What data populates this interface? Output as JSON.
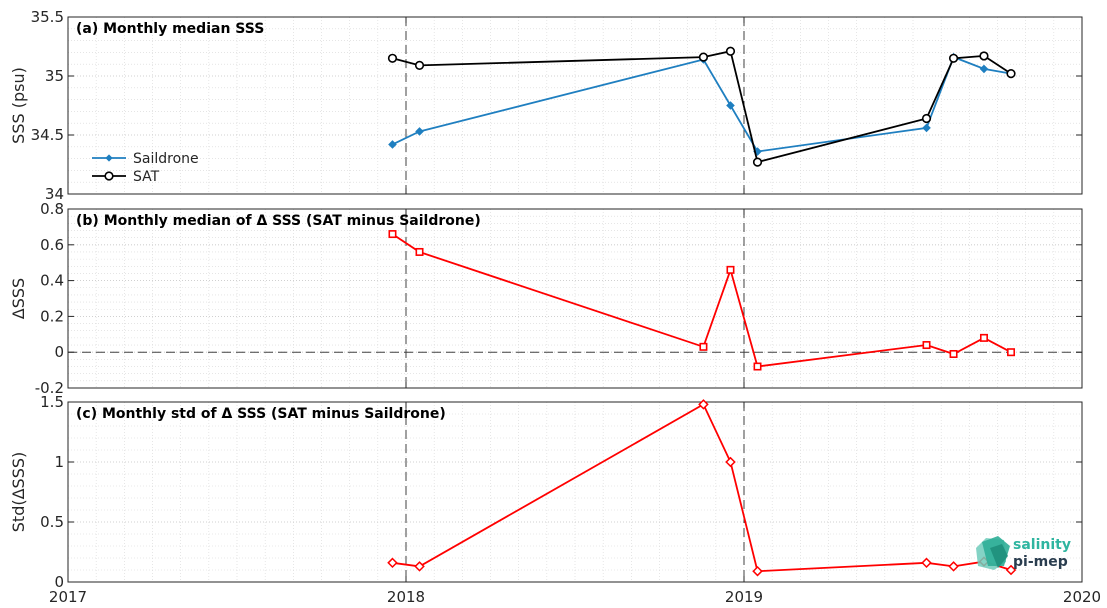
{
  "chart_data": [
    {
      "type": "line",
      "title": "(a) Monthly median SSS",
      "ylabel": "SSS (psu)",
      "xlim": [
        2017,
        2020
      ],
      "ylim": [
        34,
        35.5
      ],
      "yticks": [
        "34",
        "34.5",
        "35",
        "35.5"
      ],
      "xticks": [
        "2017",
        "2018",
        "2019",
        "2020"
      ],
      "grid": true,
      "legend_position": "lower-left",
      "series": [
        {
          "name": "Saildrone",
          "color": "#1f7fc0",
          "marker": "diamond",
          "x": [
            2017.96,
            2018.04,
            2018.88,
            2018.96,
            2019.04,
            2019.54,
            2019.62,
            2019.71,
            2019.79
          ],
          "y": [
            34.42,
            34.53,
            35.14,
            34.75,
            34.36,
            34.56,
            35.16,
            35.06,
            35.02
          ]
        },
        {
          "name": "SAT",
          "color": "#000000",
          "marker": "circle",
          "x": [
            2017.96,
            2018.04,
            2018.88,
            2018.96,
            2019.04,
            2019.54,
            2019.62,
            2019.71,
            2019.79
          ],
          "y": [
            35.15,
            35.09,
            35.16,
            35.21,
            34.27,
            34.64,
            35.15,
            35.17,
            35.02
          ]
        }
      ]
    },
    {
      "type": "line",
      "title": "(b) Monthly median of Δ SSS (SAT minus Saildrone)",
      "ylabel": "ΔSSS",
      "xlim": [
        2017,
        2020
      ],
      "ylim": [
        -0.2,
        0.8
      ],
      "yticks": [
        "-0.2",
        "0",
        "0.2",
        "0.4",
        "0.6",
        "0.8"
      ],
      "grid": true,
      "series": [
        {
          "color": "#ff0000",
          "marker": "square",
          "x": [
            2017.96,
            2018.04,
            2018.88,
            2018.96,
            2019.04,
            2019.54,
            2019.62,
            2019.71,
            2019.79
          ],
          "y": [
            0.66,
            0.56,
            0.03,
            0.46,
            -0.08,
            0.04,
            -0.01,
            0.08,
            0.0
          ]
        }
      ]
    },
    {
      "type": "line",
      "title": "(c) Monthly std of Δ SSS (SAT minus Saildrone)",
      "ylabel": "Std(ΔSSS)",
      "xlim": [
        2017,
        2020
      ],
      "ylim": [
        0,
        1.5
      ],
      "yticks": [
        "0",
        "0.5",
        "1",
        "1.5"
      ],
      "grid": true,
      "series": [
        {
          "color": "#ff0000",
          "marker": "diamond-open",
          "x": [
            2017.96,
            2018.04,
            2018.88,
            2018.96,
            2019.04,
            2019.54,
            2019.62,
            2019.71,
            2019.79
          ],
          "y": [
            0.16,
            0.13,
            1.48,
            1.0,
            0.09,
            0.16,
            0.13,
            0.17,
            0.1
          ]
        }
      ]
    }
  ],
  "logo": {
    "line1": "salinity",
    "line2": "pi-mep"
  }
}
